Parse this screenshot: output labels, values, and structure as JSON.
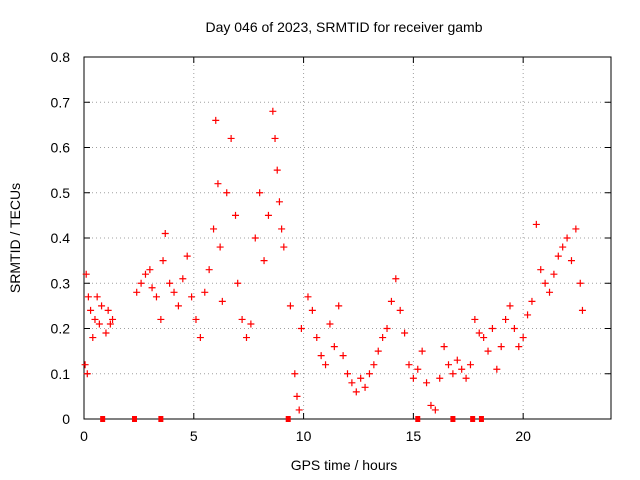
{
  "chart_data": {
    "type": "scatter",
    "title": "Day 046 of 2023, SRMTID for receiver gamb",
    "xlabel": "GPS time / hours",
    "ylabel": "SRMTID / TECUs",
    "xlim": [
      0,
      24
    ],
    "ylim": [
      0,
      0.8
    ],
    "xticks": [
      0,
      5,
      10,
      15,
      20
    ],
    "yticks": [
      0,
      0.1,
      0.2,
      0.3,
      0.4,
      0.5,
      0.6,
      0.7,
      0.8
    ],
    "xtick_labels": [
      "0",
      "5",
      "10",
      "15",
      "20"
    ],
    "ytick_labels": [
      "0",
      "0.1",
      "0.2",
      "0.3",
      "0.4",
      "0.5",
      "0.6",
      "0.7",
      "0.8"
    ],
    "grid": true,
    "marker": "+",
    "color": "#ff0000",
    "series": [
      {
        "name": "SRMTID",
        "points": [
          [
            0.05,
            0.12
          ],
          [
            0.1,
            0.32
          ],
          [
            0.15,
            0.1
          ],
          [
            0.2,
            0.27
          ],
          [
            0.3,
            0.24
          ],
          [
            0.4,
            0.18
          ],
          [
            0.5,
            0.22
          ],
          [
            0.6,
            0.27
          ],
          [
            0.7,
            0.21
          ],
          [
            0.8,
            0.25
          ],
          [
            1.0,
            0.19
          ],
          [
            1.1,
            0.24
          ],
          [
            1.2,
            0.21
          ],
          [
            1.3,
            0.22
          ],
          [
            2.4,
            0.28
          ],
          [
            2.6,
            0.3
          ],
          [
            2.8,
            0.32
          ],
          [
            3.0,
            0.33
          ],
          [
            3.1,
            0.29
          ],
          [
            3.3,
            0.27
          ],
          [
            3.5,
            0.22
          ],
          [
            3.6,
            0.35
          ],
          [
            3.7,
            0.41
          ],
          [
            3.9,
            0.3
          ],
          [
            4.1,
            0.28
          ],
          [
            4.3,
            0.25
          ],
          [
            4.5,
            0.31
          ],
          [
            4.7,
            0.36
          ],
          [
            4.9,
            0.27
          ],
          [
            5.1,
            0.22
          ],
          [
            5.3,
            0.18
          ],
          [
            5.5,
            0.28
          ],
          [
            5.7,
            0.33
          ],
          [
            5.9,
            0.42
          ],
          [
            6.0,
            0.66
          ],
          [
            6.1,
            0.52
          ],
          [
            6.2,
            0.38
          ],
          [
            6.3,
            0.26
          ],
          [
            6.5,
            0.5
          ],
          [
            6.7,
            0.62
          ],
          [
            6.9,
            0.45
          ],
          [
            7.0,
            0.3
          ],
          [
            7.2,
            0.22
          ],
          [
            7.4,
            0.18
          ],
          [
            7.6,
            0.21
          ],
          [
            7.8,
            0.4
          ],
          [
            8.0,
            0.5
          ],
          [
            8.2,
            0.35
          ],
          [
            8.4,
            0.45
          ],
          [
            8.6,
            0.68
          ],
          [
            8.7,
            0.62
          ],
          [
            8.8,
            0.55
          ],
          [
            8.9,
            0.48
          ],
          [
            9.0,
            0.42
          ],
          [
            9.1,
            0.38
          ],
          [
            9.4,
            0.25
          ],
          [
            9.6,
            0.1
          ],
          [
            9.7,
            0.05
          ],
          [
            9.8,
            0.02
          ],
          [
            9.9,
            0.2
          ],
          [
            10.2,
            0.27
          ],
          [
            10.4,
            0.24
          ],
          [
            10.6,
            0.18
          ],
          [
            10.8,
            0.14
          ],
          [
            11.0,
            0.12
          ],
          [
            11.2,
            0.21
          ],
          [
            11.4,
            0.16
          ],
          [
            11.6,
            0.25
          ],
          [
            11.8,
            0.14
          ],
          [
            12.0,
            0.1
          ],
          [
            12.2,
            0.08
          ],
          [
            12.4,
            0.06
          ],
          [
            12.6,
            0.09
          ],
          [
            12.8,
            0.07
          ],
          [
            13.0,
            0.1
          ],
          [
            13.2,
            0.12
          ],
          [
            13.4,
            0.15
          ],
          [
            13.6,
            0.18
          ],
          [
            13.8,
            0.2
          ],
          [
            14.0,
            0.26
          ],
          [
            14.2,
            0.31
          ],
          [
            14.4,
            0.24
          ],
          [
            14.6,
            0.19
          ],
          [
            14.8,
            0.12
          ],
          [
            15.0,
            0.09
          ],
          [
            15.2,
            0.11
          ],
          [
            15.4,
            0.15
          ],
          [
            15.6,
            0.08
          ],
          [
            15.8,
            0.03
          ],
          [
            16.0,
            0.02
          ],
          [
            16.2,
            0.09
          ],
          [
            16.4,
            0.16
          ],
          [
            16.6,
            0.12
          ],
          [
            16.8,
            0.1
          ],
          [
            17.0,
            0.13
          ],
          [
            17.2,
            0.11
          ],
          [
            17.4,
            0.09
          ],
          [
            17.6,
            0.12
          ],
          [
            17.8,
            0.22
          ],
          [
            18.0,
            0.19
          ],
          [
            18.2,
            0.18
          ],
          [
            18.4,
            0.15
          ],
          [
            18.6,
            0.2
          ],
          [
            18.8,
            0.11
          ],
          [
            19.0,
            0.16
          ],
          [
            19.2,
            0.22
          ],
          [
            19.4,
            0.25
          ],
          [
            19.6,
            0.2
          ],
          [
            19.8,
            0.16
          ],
          [
            20.0,
            0.18
          ],
          [
            20.2,
            0.23
          ],
          [
            20.4,
            0.26
          ],
          [
            20.6,
            0.43
          ],
          [
            20.8,
            0.33
          ],
          [
            21.0,
            0.3
          ],
          [
            21.2,
            0.28
          ],
          [
            21.4,
            0.32
          ],
          [
            21.6,
            0.36
          ],
          [
            21.8,
            0.38
          ],
          [
            22.0,
            0.4
          ],
          [
            22.2,
            0.35
          ],
          [
            22.4,
            0.42
          ],
          [
            22.6,
            0.3
          ],
          [
            22.7,
            0.24
          ]
        ]
      }
    ],
    "zero_points": [
      0.85,
      2.3,
      3.5,
      9.3,
      15.2,
      16.8,
      17.7,
      18.1
    ]
  }
}
